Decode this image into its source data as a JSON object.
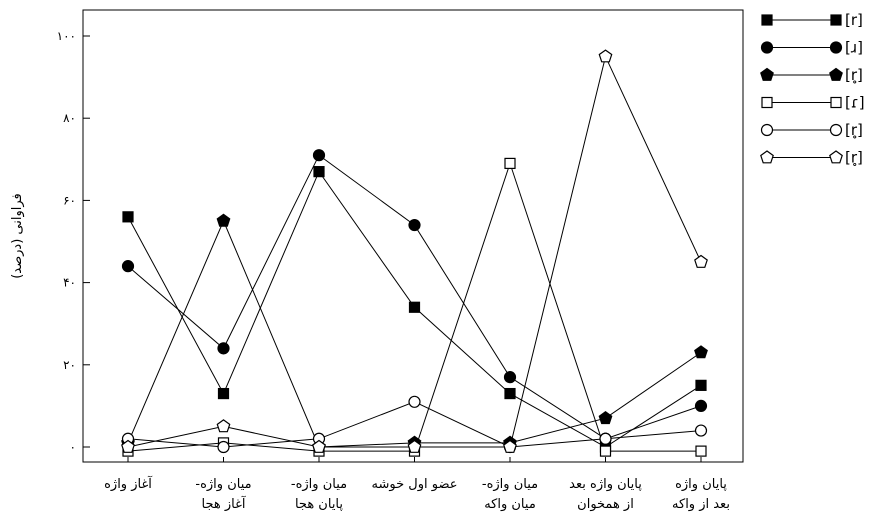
{
  "chart_data": {
    "type": "line",
    "ylabel": "فراوانی (درصد)",
    "ylim": [
      0,
      100
    ],
    "yticks": [
      "۰",
      "۲۰",
      "۴۰",
      "۶۰",
      "۸۰",
      "۱۰۰"
    ],
    "categories": [
      [
        "آغاز واژه"
      ],
      [
        "میان واژه-",
        "آغاز هجا"
      ],
      [
        "میان واژه-",
        "پایان هجا"
      ],
      [
        "عضو اول خوشه"
      ],
      [
        "میان واژه-",
        "میان واکه"
      ],
      [
        "پایان واژه بعد",
        "از همخوان"
      ],
      [
        "پایان واژه",
        "بعد از واکه"
      ]
    ],
    "grid": false,
    "legend_position": "right",
    "series": [
      {
        "name": "[r]",
        "marker": "square-filled",
        "values": [
          56,
          13,
          67,
          34,
          13,
          0,
          15
        ]
      },
      {
        "name": "[ɹ]",
        "marker": "circle-filled",
        "values": [
          44,
          24,
          71,
          54,
          17,
          2,
          10
        ]
      },
      {
        "name": "[r̥]",
        "marker": "pentagon-filled",
        "values": [
          1,
          55,
          0,
          1,
          1,
          7,
          23
        ]
      },
      {
        "name": "[ɾ]",
        "marker": "square-open",
        "values": [
          -1,
          1,
          -1,
          -1,
          69,
          -1,
          -1
        ]
      },
      {
        "name": "[r̥]",
        "marker": "circle-open",
        "values": [
          2,
          0,
          2,
          11,
          0,
          2,
          4
        ]
      },
      {
        "name": "[r̥]",
        "marker": "pentagon-open",
        "values": [
          0,
          5,
          0,
          0,
          0,
          95,
          45
        ]
      }
    ]
  }
}
